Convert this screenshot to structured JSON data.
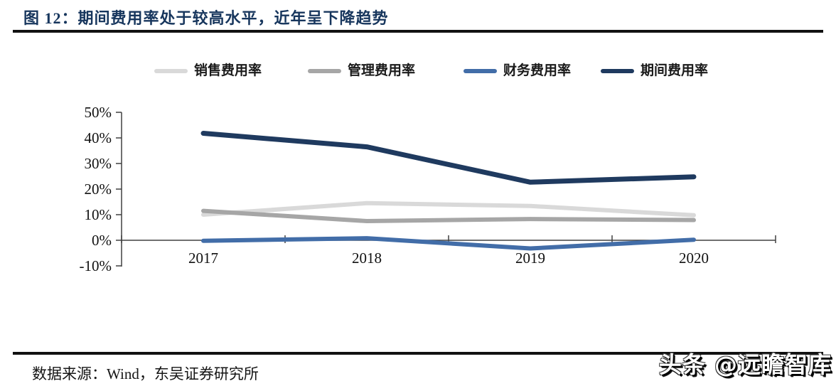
{
  "figure": {
    "title": "图 12：期间费用率处于较高水平，近年呈下降趋势",
    "source": "数据来源：Wind，东吴证券研究所",
    "watermark": "头条 @远瞻智库"
  },
  "colors": {
    "title_text": "#17365d",
    "rule": "#111111",
    "axis": "#404040",
    "tick_label": "#111111",
    "sales": "#d9d9d9",
    "admin": "#a6a6a6",
    "finance": "#426da8",
    "period": "#1f3a5f"
  },
  "chart_data": {
    "type": "line",
    "title": "",
    "xlabel": "",
    "ylabel": "",
    "categories": [
      "2017",
      "2018",
      "2019",
      "2020"
    ],
    "series": [
      {
        "name": "销售费用率",
        "color_key": "sales",
        "values": [
          10.0,
          14.5,
          13.4,
          9.8
        ]
      },
      {
        "name": "管理费用率",
        "color_key": "admin",
        "values": [
          11.5,
          7.5,
          8.3,
          7.9
        ]
      },
      {
        "name": "财务费用率",
        "color_key": "finance",
        "values": [
          -0.2,
          0.8,
          -3.2,
          0.2
        ]
      },
      {
        "name": "期间费用率",
        "color_key": "period",
        "values": [
          41.8,
          36.5,
          22.7,
          24.8
        ]
      }
    ],
    "ylim": [
      -10,
      50
    ],
    "ytick_labels": [
      "50%",
      "40%",
      "30%",
      "20%",
      "10%",
      "0%",
      "-10%"
    ],
    "ytick_values": [
      50,
      40,
      30,
      20,
      10,
      0,
      -10
    ],
    "legend_position": "top",
    "grid": false
  }
}
